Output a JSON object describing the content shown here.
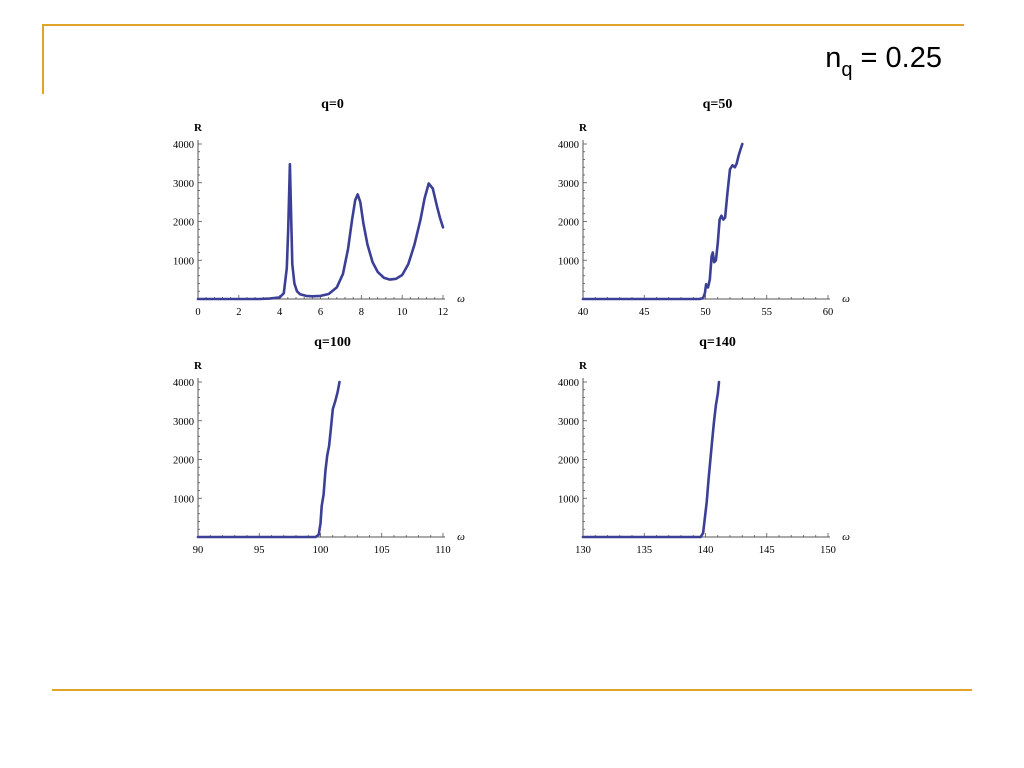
{
  "slide": {
    "title_main": "n",
    "title_sub": "q",
    "title_rest": " = 0.25",
    "accent_color": "#e0a428"
  },
  "chart_data": [
    {
      "type": "line",
      "title": "q=0",
      "xlabel": "ω",
      "ylabel": "R",
      "xlim": [
        0,
        12
      ],
      "ylim": [
        0,
        4000
      ],
      "xticks": [
        0,
        2,
        4,
        6,
        8,
        10,
        12
      ],
      "yticks": [
        1000,
        2000,
        3000,
        4000
      ],
      "line_color": "#3b3f96",
      "series": [
        {
          "x": [
            0,
            1,
            2,
            3,
            3.5,
            4,
            4.2,
            4.35,
            4.42,
            4.5,
            4.55,
            4.62,
            4.72,
            4.85,
            5.0,
            5.3,
            5.6,
            6.0,
            6.4,
            6.8,
            7.1,
            7.35,
            7.55,
            7.7,
            7.82,
            7.95,
            8.1,
            8.3,
            8.55,
            8.8,
            9.1,
            9.4,
            9.7,
            10.0,
            10.3,
            10.6,
            10.9,
            11.1,
            11.3,
            11.5,
            11.7,
            11.85,
            12.0
          ],
          "y": [
            0,
            0,
            0,
            0,
            10,
            40,
            150,
            800,
            1800,
            3480,
            2400,
            900,
            400,
            200,
            120,
            80,
            70,
            80,
            130,
            300,
            650,
            1300,
            2050,
            2550,
            2700,
            2500,
            1950,
            1400,
            950,
            700,
            550,
            500,
            520,
            620,
            900,
            1400,
            2050,
            2600,
            2980,
            2850,
            2400,
            2100,
            1850
          ]
        }
      ]
    },
    {
      "type": "line",
      "title": "q=50",
      "xlabel": "ω",
      "ylabel": "R",
      "xlim": [
        40,
        60
      ],
      "ylim": [
        0,
        4000
      ],
      "xticks": [
        40,
        45,
        50,
        55,
        60
      ],
      "yticks": [
        1000,
        2000,
        3000,
        4000
      ],
      "line_color": "#3b3f96",
      "series": [
        {
          "x": [
            40,
            45,
            49.5,
            49.8,
            49.95,
            50.05,
            50.2,
            50.35,
            50.5,
            50.6,
            50.7,
            50.85,
            51.0,
            51.15,
            51.3,
            51.45,
            51.6,
            51.8,
            52.0,
            52.2,
            52.4,
            52.55,
            52.7,
            52.85,
            53.0
          ],
          "y": [
            0,
            0,
            0,
            20,
            150,
            380,
            300,
            500,
            1100,
            1200,
            950,
            1000,
            1450,
            2050,
            2150,
            2050,
            2100,
            2750,
            3350,
            3450,
            3400,
            3500,
            3700,
            3850,
            4000
          ]
        }
      ]
    },
    {
      "type": "line",
      "title": "q=100",
      "xlabel": "ω",
      "ylabel": "R",
      "xlim": [
        90,
        110
      ],
      "ylim": [
        0,
        4000
      ],
      "xticks": [
        90,
        95,
        100,
        105,
        110
      ],
      "yticks": [
        1000,
        2000,
        3000,
        4000
      ],
      "line_color": "#3b3f96",
      "series": [
        {
          "x": [
            90,
            95,
            99.6,
            99.85,
            100.0,
            100.1,
            100.25,
            100.4,
            100.55,
            100.7,
            100.85,
            101.0,
            101.2,
            101.4,
            101.55
          ],
          "y": [
            0,
            0,
            0,
            60,
            350,
            800,
            1100,
            1700,
            2100,
            2350,
            2800,
            3300,
            3500,
            3750,
            4000
          ]
        }
      ]
    },
    {
      "type": "line",
      "title": "q=140",
      "xlabel": "ω",
      "ylabel": "R",
      "xlim": [
        130,
        150
      ],
      "ylim": [
        0,
        4000
      ],
      "xticks": [
        130,
        135,
        140,
        145,
        150
      ],
      "yticks": [
        1000,
        2000,
        3000,
        4000
      ],
      "line_color": "#3b3f96",
      "series": [
        {
          "x": [
            130,
            135,
            139.6,
            139.8,
            139.95,
            140.1,
            140.25,
            140.4,
            140.55,
            140.7,
            140.85,
            141.0,
            141.1
          ],
          "y": [
            0,
            0,
            0,
            100,
            500,
            900,
            1500,
            2000,
            2500,
            3000,
            3400,
            3700,
            4000
          ]
        }
      ]
    }
  ]
}
